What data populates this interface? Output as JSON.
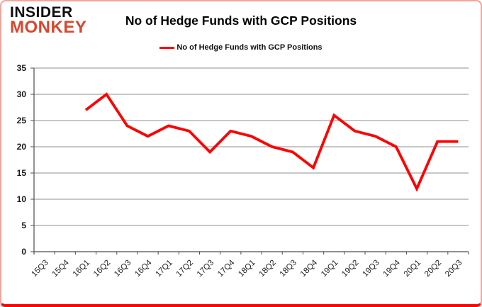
{
  "logo": {
    "line1": "INSIDER",
    "line2": "MONKEY"
  },
  "title": "No of Hedge Funds with GCP Positions",
  "legend": {
    "label": "No of Hedge Funds with GCP Positions"
  },
  "colors": {
    "accent_red": "#FF0000",
    "logo_red": "#D9472E",
    "border_pink": "#F2A49C",
    "border_bottom_red": "#FF0202",
    "grid": "#8F8F8F",
    "axis": "#4D4D4D",
    "label": "#1A1A1A"
  },
  "chart_data": {
    "type": "line",
    "title": "No of Hedge Funds with GCP Positions",
    "xlabel": "",
    "ylabel": "",
    "categories": [
      "15Q3",
      "15Q4",
      "16Q1",
      "16Q2",
      "16Q3",
      "16Q4",
      "17Q1",
      "17Q2",
      "17Q3",
      "17Q4",
      "18Q1",
      "18Q2",
      "18Q3",
      "18Q4",
      "19Q1",
      "19Q2",
      "19Q3",
      "19Q4",
      "20Q1",
      "20Q2",
      "20Q3"
    ],
    "series": [
      {
        "name": "No of Hedge Funds with GCP Positions",
        "color": "#FF0000",
        "values": [
          null,
          null,
          27,
          30,
          24,
          22,
          24,
          23,
          19,
          23,
          22,
          20,
          19,
          16,
          26,
          23,
          22,
          20,
          12,
          21,
          21
        ]
      }
    ],
    "ylim": [
      0,
      35
    ],
    "ytick_step": 5,
    "grid": "horizontal",
    "legend_position": "top"
  }
}
